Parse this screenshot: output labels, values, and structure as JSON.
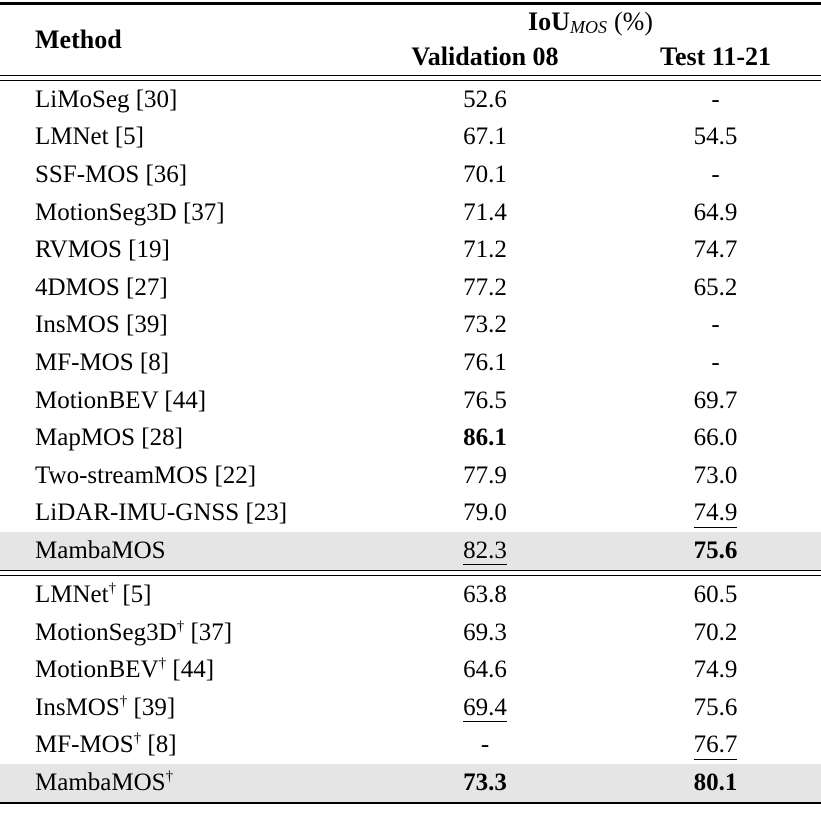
{
  "table": {
    "header": {
      "method_label": "Method",
      "iou_main": "IoU",
      "iou_sub": "MOS",
      "iou_unit": "(%)",
      "col_validation": "Validation 08",
      "col_test": "Test 11-21"
    },
    "dagger_symbol": "†",
    "colors": {
      "highlight_row": "#e5e5e5",
      "text": "#000000",
      "rule": "#000000"
    },
    "sections": [
      {
        "rows": [
          {
            "method": "LiMoSeg",
            "dagger": false,
            "ref": "[30]",
            "val": "52.6",
            "val_style": "normal",
            "test": "-",
            "test_style": "normal",
            "highlight": false
          },
          {
            "method": "LMNet",
            "dagger": false,
            "ref": "[5]",
            "val": "67.1",
            "val_style": "normal",
            "test": "54.5",
            "test_style": "normal",
            "highlight": false
          },
          {
            "method": "SSF-MOS",
            "dagger": false,
            "ref": "[36]",
            "val": "70.1",
            "val_style": "normal",
            "test": "-",
            "test_style": "normal",
            "highlight": false
          },
          {
            "method": "MotionSeg3D",
            "dagger": false,
            "ref": "[37]",
            "val": "71.4",
            "val_style": "normal",
            "test": "64.9",
            "test_style": "normal",
            "highlight": false
          },
          {
            "method": "RVMOS",
            "dagger": false,
            "ref": "[19]",
            "val": "71.2",
            "val_style": "normal",
            "test": "74.7",
            "test_style": "normal",
            "highlight": false
          },
          {
            "method": "4DMOS",
            "dagger": false,
            "ref": "[27]",
            "val": "77.2",
            "val_style": "normal",
            "test": "65.2",
            "test_style": "normal",
            "highlight": false
          },
          {
            "method": "InsMOS",
            "dagger": false,
            "ref": "[39]",
            "val": "73.2",
            "val_style": "normal",
            "test": "-",
            "test_style": "normal",
            "highlight": false
          },
          {
            "method": "MF-MOS",
            "dagger": false,
            "ref": "[8]",
            "val": "76.1",
            "val_style": "normal",
            "test": "-",
            "test_style": "normal",
            "highlight": false
          },
          {
            "method": "MotionBEV",
            "dagger": false,
            "ref": "[44]",
            "val": "76.5",
            "val_style": "normal",
            "test": "69.7",
            "test_style": "normal",
            "highlight": false
          },
          {
            "method": "MapMOS",
            "dagger": false,
            "ref": "[28]",
            "val": "86.1",
            "val_style": "bold",
            "test": "66.0",
            "test_style": "normal",
            "highlight": false
          },
          {
            "method": "Two-streamMOS",
            "dagger": false,
            "ref": "[22]",
            "val": "77.9",
            "val_style": "normal",
            "test": "73.0",
            "test_style": "normal",
            "highlight": false
          },
          {
            "method": "LiDAR-IMU-GNSS",
            "dagger": false,
            "ref": "[23]",
            "val": "79.0",
            "val_style": "normal",
            "test": "74.9",
            "test_style": "underline",
            "highlight": false
          },
          {
            "method": "MambaMOS",
            "dagger": false,
            "ref": "",
            "val": "82.3",
            "val_style": "underline",
            "test": "75.6",
            "test_style": "bold",
            "highlight": true
          }
        ]
      },
      {
        "rows": [
          {
            "method": "LMNet",
            "dagger": true,
            "ref": "[5]",
            "val": "63.8",
            "val_style": "normal",
            "test": "60.5",
            "test_style": "normal",
            "highlight": false
          },
          {
            "method": "MotionSeg3D",
            "dagger": true,
            "ref": "[37]",
            "val": "69.3",
            "val_style": "normal",
            "test": "70.2",
            "test_style": "normal",
            "highlight": false
          },
          {
            "method": "MotionBEV",
            "dagger": true,
            "ref": "[44]",
            "val": "64.6",
            "val_style": "normal",
            "test": "74.9",
            "test_style": "normal",
            "highlight": false
          },
          {
            "method": "InsMOS",
            "dagger": true,
            "ref": "[39]",
            "val": "69.4",
            "val_style": "underline",
            "test": "75.6",
            "test_style": "normal",
            "highlight": false
          },
          {
            "method": "MF-MOS",
            "dagger": true,
            "ref": "[8]",
            "val": "-",
            "val_style": "normal",
            "test": "76.7",
            "test_style": "underline",
            "highlight": false
          },
          {
            "method": "MambaMOS",
            "dagger": true,
            "ref": "",
            "val": "73.3",
            "val_style": "bold",
            "test": "80.1",
            "test_style": "bold",
            "highlight": true
          }
        ]
      }
    ]
  }
}
